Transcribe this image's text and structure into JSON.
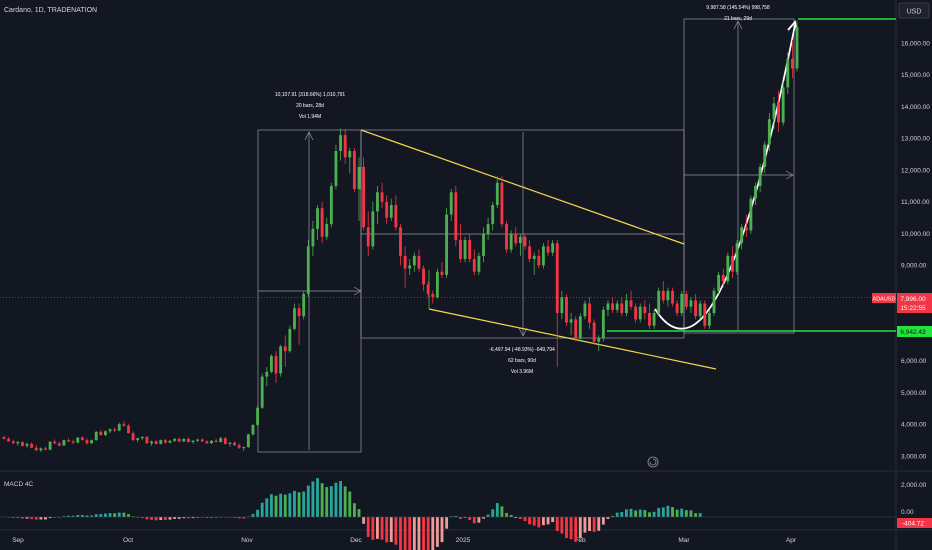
{
  "header": {
    "symbol_title": "Cardano, 1D, TRADENATION"
  },
  "currency_button": "USD",
  "price_badge": {
    "symbol": "ADAUSD",
    "price": "7,996.00",
    "countdown": "15:22:55"
  },
  "support_badge": "6,942.43",
  "macd": {
    "label": "MACD 4C",
    "axis": [
      "2,000.00",
      "0.00"
    ],
    "badge": "-404.72"
  },
  "annotations": {
    "rally": [
      "10,107.91 (318.66%) 1,010,791",
      "20 bars, 28d",
      "Vol 1.94M"
    ],
    "decline": [
      "-6,497.94 (-48.93%) -649,794",
      "62 bars, 90d",
      "Vol 3.96M"
    ],
    "projection": [
      "9,987.58 (145.54%) 998,758",
      "21 bars, 29d"
    ]
  },
  "colors": {
    "background": "#131722",
    "up": "#4caf50",
    "down": "#f23645",
    "trendline": "#f5d84b",
    "support": "#22e33a",
    "measure": "#9598a1",
    "arrow": "#ffffff"
  },
  "chart_data": {
    "type": "candlestick",
    "title": "Cardano, 1D, TRADENATION",
    "unit": "USD",
    "x_ticks": [
      "Sep",
      "Oct",
      "Nov",
      "Dec",
      "2025",
      "Feb",
      "Mar",
      "Apr"
    ],
    "y_ticks": [
      3000,
      4000,
      5000,
      6000,
      7000,
      8000,
      9000,
      10000,
      11000,
      12000,
      13000,
      14000,
      15000,
      16000
    ],
    "y_tick_labels": [
      "3,000.00",
      "4,000.00",
      "5,000.00",
      "6,000.00",
      "7,000.00",
      "8,000.00",
      "9,000.00",
      "10,000.00",
      "11,000.00",
      "12,000.00",
      "13,000.00",
      "14,000.00",
      "15,000.00",
      "16,000.00"
    ],
    "ylim": [
      2600,
      16900
    ],
    "last_price": 7996,
    "support_level": 6942.43,
    "grid": false,
    "candles": [
      [
        3600,
        3620,
        3520,
        3540
      ],
      [
        3540,
        3600,
        3450,
        3460
      ],
      [
        3460,
        3520,
        3380,
        3400
      ],
      [
        3400,
        3480,
        3330,
        3440
      ],
      [
        3440,
        3460,
        3300,
        3320
      ],
      [
        3320,
        3420,
        3260,
        3380
      ],
      [
        3380,
        3430,
        3240,
        3260
      ],
      [
        3260,
        3340,
        3150,
        3180
      ],
      [
        3180,
        3270,
        3120,
        3240
      ],
      [
        3240,
        3300,
        3180,
        3200
      ],
      [
        3200,
        3470,
        3180,
        3450
      ],
      [
        3450,
        3520,
        3380,
        3400
      ],
      [
        3400,
        3450,
        3300,
        3330
      ],
      [
        3330,
        3520,
        3310,
        3500
      ],
      [
        3500,
        3560,
        3440,
        3460
      ],
      [
        3460,
        3520,
        3380,
        3420
      ],
      [
        3420,
        3600,
        3400,
        3580
      ],
      [
        3580,
        3620,
        3480,
        3500
      ],
      [
        3500,
        3560,
        3360,
        3400
      ],
      [
        3400,
        3520,
        3380,
        3500
      ],
      [
        3500,
        3780,
        3480,
        3760
      ],
      [
        3760,
        3820,
        3640,
        3660
      ],
      [
        3660,
        3800,
        3620,
        3780
      ],
      [
        3780,
        3880,
        3720,
        3840
      ],
      [
        3840,
        3900,
        3760,
        3800
      ],
      [
        3800,
        4050,
        3780,
        4000
      ],
      [
        4000,
        4100,
        3920,
        3950
      ],
      [
        3950,
        4020,
        3700,
        3720
      ],
      [
        3720,
        3780,
        3480,
        3500
      ],
      [
        3500,
        3580,
        3430,
        3560
      ],
      [
        3560,
        3620,
        3500,
        3600
      ],
      [
        3600,
        3620,
        3380,
        3400
      ],
      [
        3400,
        3480,
        3320,
        3460
      ],
      [
        3460,
        3500,
        3360,
        3380
      ],
      [
        3380,
        3520,
        3360,
        3500
      ],
      [
        3500,
        3540,
        3380,
        3420
      ],
      [
        3420,
        3500,
        3400,
        3480
      ],
      [
        3480,
        3560,
        3440,
        3540
      ],
      [
        3540,
        3580,
        3420,
        3460
      ],
      [
        3460,
        3560,
        3440,
        3540
      ],
      [
        3540,
        3580,
        3420,
        3440
      ],
      [
        3440,
        3500,
        3380,
        3480
      ],
      [
        3480,
        3540,
        3440,
        3520
      ],
      [
        3520,
        3560,
        3440,
        3460
      ],
      [
        3460,
        3500,
        3380,
        3400
      ],
      [
        3400,
        3500,
        3380,
        3480
      ],
      [
        3480,
        3540,
        3420,
        3440
      ],
      [
        3440,
        3600,
        3420,
        3560
      ],
      [
        3560,
        3600,
        3360,
        3380
      ],
      [
        3380,
        3440,
        3300,
        3420
      ],
      [
        3420,
        3460,
        3320,
        3340
      ],
      [
        3340,
        3400,
        3220,
        3260
      ],
      [
        3260,
        3300,
        3160,
        3280
      ],
      [
        3280,
        3700,
        3260,
        3680
      ],
      [
        3680,
        4000,
        3640,
        3980
      ],
      [
        3980,
        4600,
        3940,
        4520
      ],
      [
        4520,
        5600,
        4480,
        5500
      ],
      [
        5500,
        5800,
        5200,
        5650
      ],
      [
        5650,
        6200,
        5600,
        6150
      ],
      [
        6150,
        6300,
        5300,
        5600
      ],
      [
        5600,
        6500,
        5500,
        6450
      ],
      [
        6450,
        6800,
        5800,
        6300
      ],
      [
        6300,
        7100,
        6250,
        7000
      ],
      [
        7000,
        7800,
        6950,
        7650
      ],
      [
        7650,
        7800,
        6500,
        7400
      ],
      [
        7400,
        8200,
        7300,
        8100
      ],
      [
        8100,
        9800,
        8000,
        9600
      ],
      [
        9600,
        10400,
        9300,
        10150
      ],
      [
        10150,
        10900,
        9800,
        10800
      ],
      [
        10800,
        11000,
        9700,
        9900
      ],
      [
        9900,
        10500,
        9800,
        10300
      ],
      [
        10300,
        11600,
        10200,
        11500
      ],
      [
        11500,
        12800,
        11400,
        12600
      ],
      [
        12600,
        13300,
        12300,
        13100
      ],
      [
        13100,
        13300,
        12200,
        12400
      ],
      [
        12400,
        12700,
        11900,
        12600
      ],
      [
        12600,
        12700,
        11300,
        11400
      ],
      [
        11400,
        12400,
        10400,
        12100
      ],
      [
        12100,
        12400,
        10100,
        10200
      ],
      [
        10200,
        10700,
        9300,
        9600
      ],
      [
        9600,
        11000,
        9500,
        10700
      ],
      [
        10700,
        11500,
        10300,
        11300
      ],
      [
        11300,
        11600,
        10800,
        11000
      ],
      [
        11000,
        11200,
        10300,
        10500
      ],
      [
        10500,
        11100,
        10400,
        10900
      ],
      [
        10900,
        11200,
        10100,
        10200
      ],
      [
        10200,
        10300,
        9000,
        9300
      ],
      [
        9300,
        9600,
        8300,
        8900
      ],
      [
        8900,
        9200,
        8700,
        9000
      ],
      [
        9000,
        9400,
        8800,
        9300
      ],
      [
        9300,
        9500,
        8800,
        8900
      ],
      [
        8900,
        9000,
        8200,
        8400
      ],
      [
        8400,
        8500,
        8000,
        8100
      ],
      [
        8100,
        8200,
        7800,
        8000
      ],
      [
        8000,
        8900,
        7950,
        8800
      ],
      [
        8800,
        9100,
        8600,
        8700
      ],
      [
        8700,
        10800,
        8600,
        10600
      ],
      [
        10600,
        11400,
        10400,
        11300
      ],
      [
        11300,
        11500,
        9600,
        9800
      ],
      [
        9800,
        10300,
        9100,
        9200
      ],
      [
        9200,
        9900,
        9100,
        9800
      ],
      [
        9800,
        10000,
        9100,
        9200
      ],
      [
        9200,
        9500,
        8700,
        8800
      ],
      [
        8800,
        9400,
        8700,
        9300
      ],
      [
        9300,
        10200,
        9100,
        10000
      ],
      [
        10000,
        10500,
        9800,
        10300
      ],
      [
        10300,
        11000,
        10100,
        10900
      ],
      [
        10900,
        11800,
        10800,
        11600
      ],
      [
        11600,
        11800,
        10200,
        10300
      ],
      [
        10300,
        10400,
        9400,
        9500
      ],
      [
        9500,
        10100,
        9400,
        10000
      ],
      [
        10000,
        10200,
        9600,
        9700
      ],
      [
        9700,
        10000,
        9300,
        9900
      ],
      [
        9900,
        10000,
        9500,
        9600
      ],
      [
        9600,
        9800,
        9100,
        9200
      ],
      [
        9200,
        9400,
        8700,
        9300
      ],
      [
        9300,
        9500,
        8900,
        9000
      ],
      [
        9000,
        9700,
        8900,
        9600
      ],
      [
        9600,
        9800,
        9300,
        9400
      ],
      [
        9400,
        9800,
        9300,
        9700
      ],
      [
        9700,
        9800,
        5800,
        7500
      ],
      [
        7500,
        8200,
        7300,
        8000
      ],
      [
        8000,
        8100,
        7100,
        7200
      ],
      [
        7200,
        7500,
        6800,
        7300
      ],
      [
        7300,
        7400,
        6600,
        6700
      ],
      [
        6700,
        7500,
        6600,
        7400
      ],
      [
        7400,
        7900,
        7300,
        7800
      ],
      [
        7800,
        8000,
        7000,
        7200
      ],
      [
        7200,
        7300,
        6500,
        6600
      ],
      [
        6600,
        6800,
        6300,
        6700
      ],
      [
        6700,
        7700,
        6600,
        7600
      ],
      [
        7600,
        7900,
        7400,
        7800
      ],
      [
        7800,
        8000,
        7500,
        7600
      ],
      [
        7600,
        7900,
        7500,
        7800
      ],
      [
        7800,
        8000,
        7400,
        7500
      ],
      [
        7500,
        8100,
        7400,
        7900
      ],
      [
        7900,
        8200,
        7600,
        7700
      ],
      [
        7700,
        7800,
        7200,
        7300
      ],
      [
        7300,
        7800,
        7200,
        7700
      ],
      [
        7700,
        7900,
        7300,
        7500
      ],
      [
        7500,
        7800,
        7000,
        7100
      ],
      [
        7100,
        7600,
        7000,
        7500
      ],
      [
        7500,
        8300,
        7400,
        8200
      ],
      [
        8200,
        8500,
        7800,
        7900
      ],
      [
        7900,
        8300,
        7700,
        8200
      ],
      [
        8200,
        8300,
        7700,
        7800
      ],
      [
        7800,
        7900,
        7400,
        7500
      ],
      [
        7500,
        8200,
        7400,
        8100
      ],
      [
        8100,
        8200,
        7600,
        7700
      ],
      [
        7700,
        8000,
        7500,
        7900
      ],
      [
        7900,
        8100,
        7300,
        7400
      ],
      [
        7400,
        7900,
        7300,
        7800
      ],
      [
        7800,
        7900,
        7000,
        7100
      ],
      [
        7100,
        7600,
        7000,
        7500
      ],
      [
        7500,
        8300,
        7400,
        8200
      ],
      [
        8200,
        8800,
        8100,
        8700
      ],
      [
        8700,
        8900,
        8300,
        8500
      ],
      [
        8500,
        9400,
        8400,
        9300
      ],
      [
        9300,
        9600,
        8600,
        8800
      ],
      [
        8800,
        9800,
        8700,
        9700
      ],
      [
        9700,
        10300,
        9500,
        10200
      ],
      [
        10200,
        10600,
        9900,
        10100
      ],
      [
        10100,
        11200,
        10000,
        11100
      ],
      [
        11100,
        11600,
        10900,
        11500
      ],
      [
        11500,
        12200,
        11300,
        12100
      ],
      [
        12100,
        12900,
        11900,
        12800
      ],
      [
        12800,
        13800,
        12600,
        13600
      ],
      [
        13600,
        14300,
        13300,
        14100
      ],
      [
        14100,
        14500,
        13200,
        13500
      ],
      [
        13500,
        14800,
        13400,
        14600
      ],
      [
        14600,
        15700,
        14400,
        15500
      ],
      [
        15500,
        16100,
        14900,
        15200
      ],
      [
        15200,
        16700,
        15100,
        16500
      ]
    ],
    "macd_histogram_range": [
      -500,
      2100
    ],
    "macd_last": -404.72,
    "series": [
      {
        "name": "MACD 4C"
      }
    ],
    "annotations": [
      {
        "text": "10,107.91 (318.66%) 1,010,791 / 20 bars, 28d / Vol 1.94M"
      },
      {
        "text": "-6,497.94 (-48.93%) -649,794 / 62 bars, 90d / Vol 3.96M"
      },
      {
        "text": "9,987.58 (145.54%) 998,758 / 21 bars, 29d"
      }
    ]
  }
}
